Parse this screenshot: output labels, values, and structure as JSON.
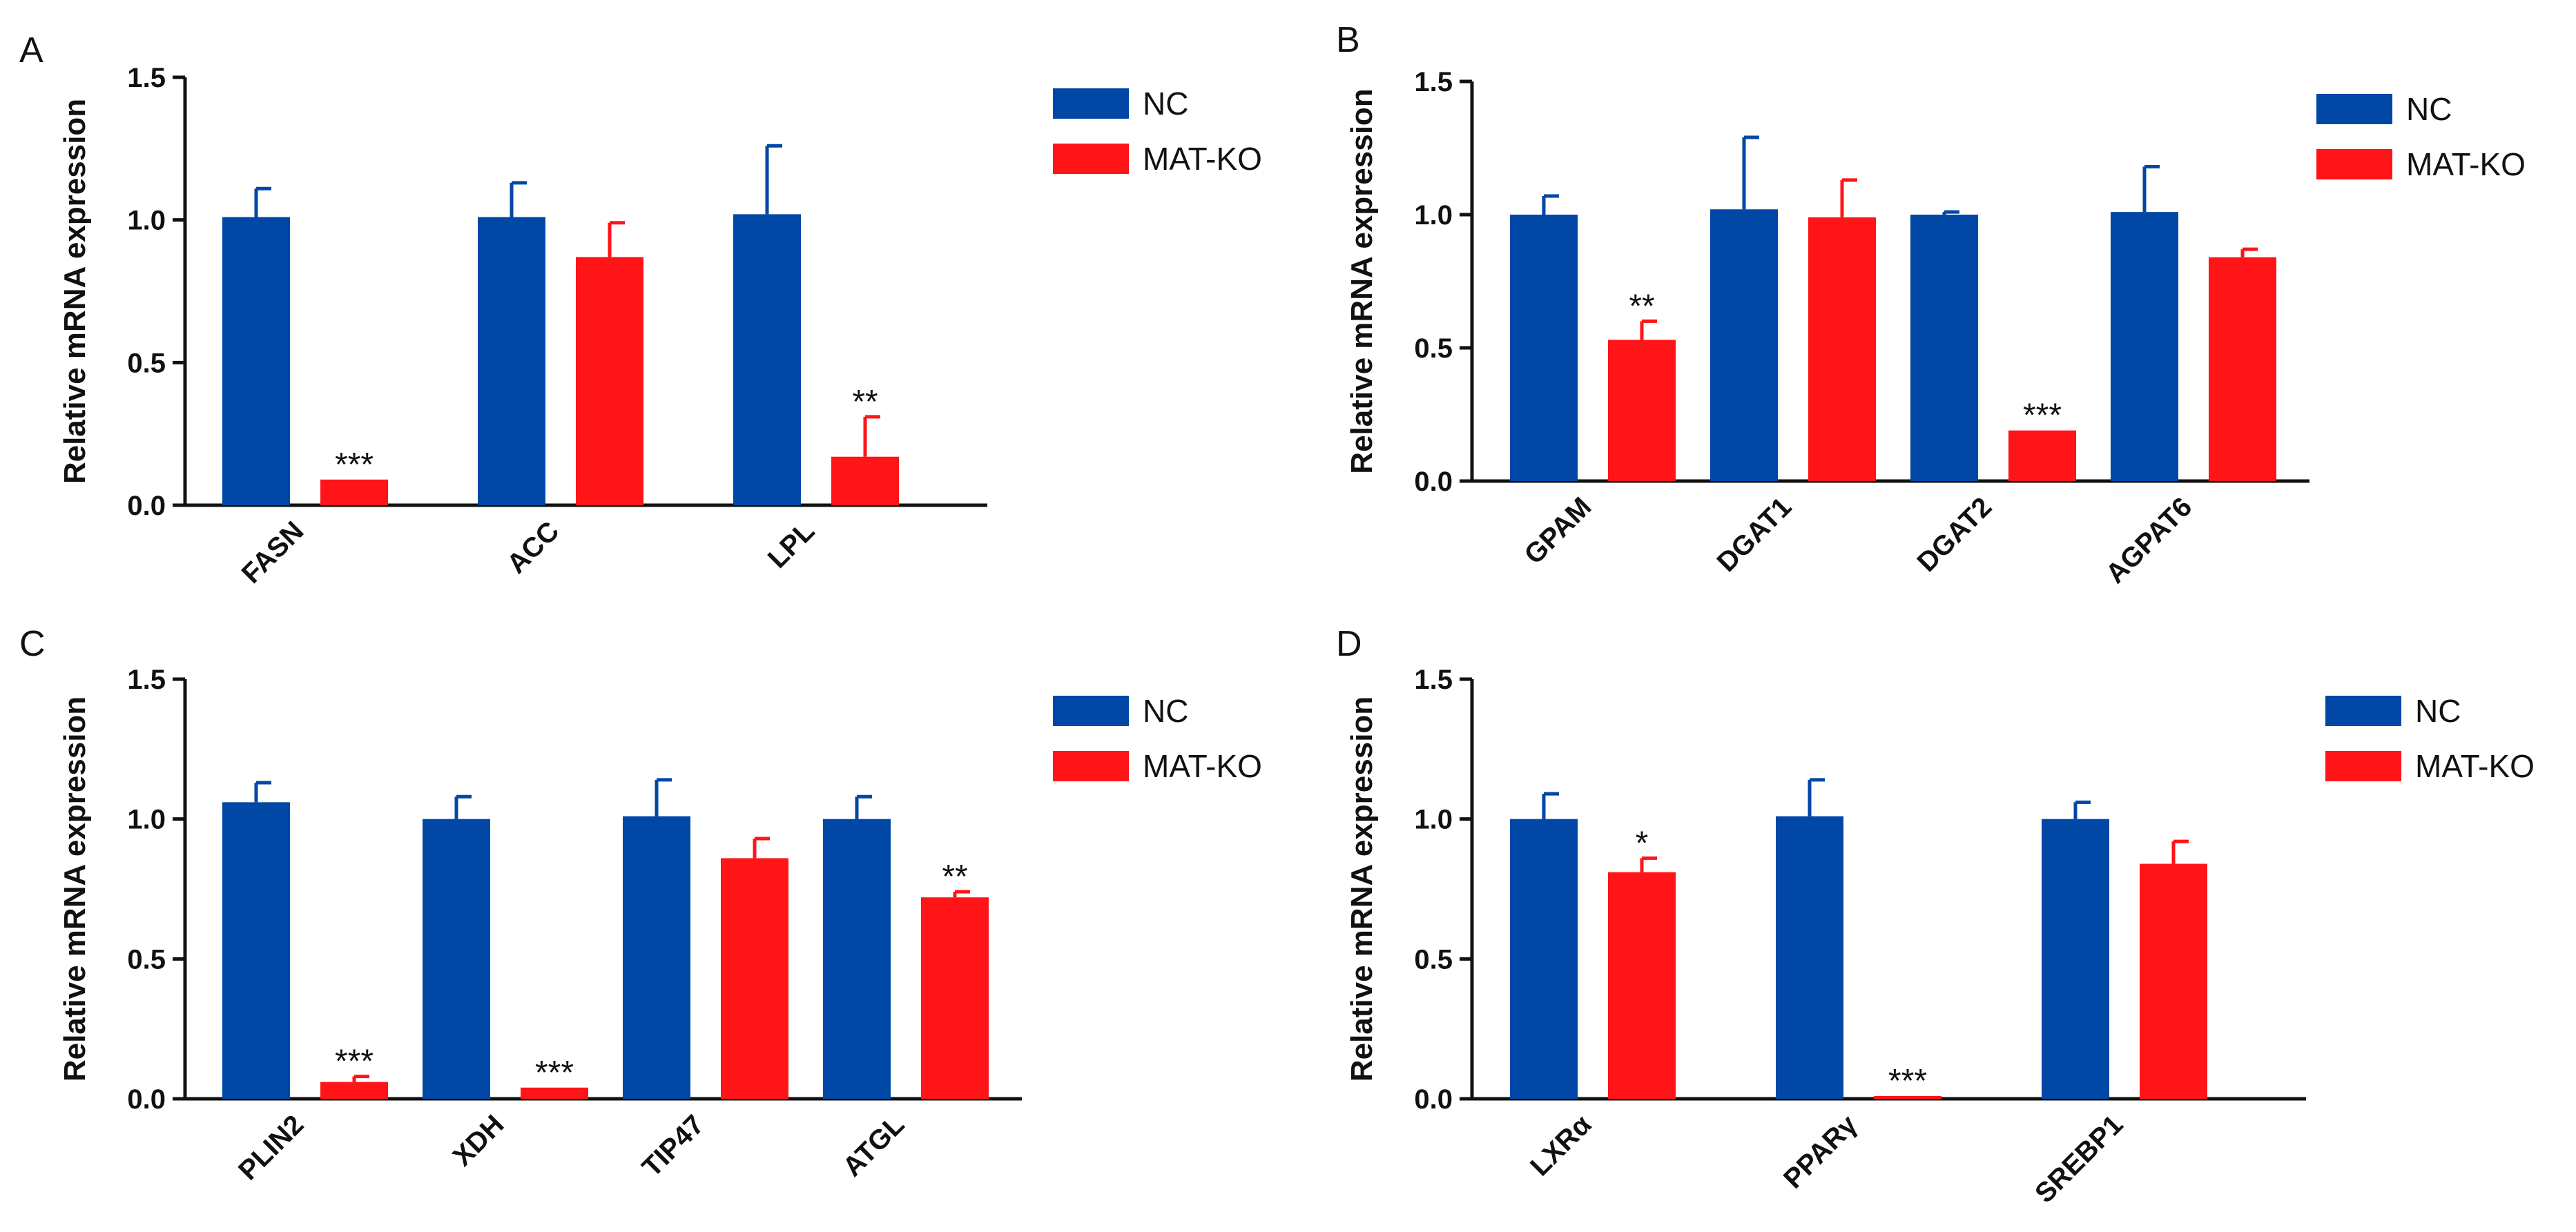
{
  "colors": {
    "NC": "#0047a6",
    "MAT-KO": "#ff1418"
  },
  "chart_data": [
    {
      "panel": "A",
      "type": "bar",
      "ylabel": "Relative mRNA expression",
      "ylim": [
        0,
        1.5
      ],
      "yticks": [
        "0.0",
        "0.5",
        "1.0",
        "1.5"
      ],
      "categories": [
        "FASN",
        "ACC",
        "LPL"
      ],
      "series": [
        {
          "name": "NC",
          "values": [
            1.01,
            1.01,
            1.02
          ],
          "errors": [
            0.1,
            0.12,
            0.24
          ]
        },
        {
          "name": "MAT-KO",
          "values": [
            0.09,
            0.87,
            0.17
          ],
          "errors": [
            0.0,
            0.12,
            0.14
          ]
        }
      ],
      "significance": [
        "***",
        "",
        "**"
      ],
      "legend": "right"
    },
    {
      "panel": "B",
      "type": "bar",
      "ylabel": "Relative mRNA expression",
      "ylim": [
        0,
        1.5
      ],
      "yticks": [
        "0.0",
        "0.5",
        "1.0",
        "1.5"
      ],
      "categories": [
        "GPAM",
        "DGAT1",
        "DGAT2",
        "AGPAT6"
      ],
      "series": [
        {
          "name": "NC",
          "values": [
            1.0,
            1.02,
            1.0,
            1.01
          ],
          "errors": [
            0.07,
            0.27,
            0.01,
            0.17
          ]
        },
        {
          "name": "MAT-KO",
          "values": [
            0.53,
            0.99,
            0.19,
            0.84
          ],
          "errors": [
            0.07,
            0.14,
            0.0,
            0.03
          ]
        }
      ],
      "significance": [
        "**",
        "",
        "***",
        ""
      ],
      "legend": "right"
    },
    {
      "panel": "C",
      "type": "bar",
      "ylabel": "Relative mRNA expression",
      "ylim": [
        0,
        1.5
      ],
      "yticks": [
        "0.0",
        "0.5",
        "1.0",
        "1.5"
      ],
      "categories": [
        "PLIN2",
        "XDH",
        "TIP47",
        "ATGL"
      ],
      "series": [
        {
          "name": "NC",
          "values": [
            1.06,
            1.0,
            1.01,
            1.0
          ],
          "errors": [
            0.07,
            0.08,
            0.13,
            0.08
          ]
        },
        {
          "name": "MAT-KO",
          "values": [
            0.06,
            0.04,
            0.86,
            0.72
          ],
          "errors": [
            0.02,
            0.0,
            0.07,
            0.02
          ]
        }
      ],
      "significance": [
        "***",
        "***",
        "",
        "**"
      ],
      "legend": "right"
    },
    {
      "panel": "D",
      "type": "bar",
      "ylabel": "Relative mRNA expression",
      "ylim": [
        0,
        1.5
      ],
      "yticks": [
        "0.0",
        "0.5",
        "1.0",
        "1.5"
      ],
      "categories": [
        "LXRα",
        "PPARγ",
        "SREBP1"
      ],
      "series": [
        {
          "name": "NC",
          "values": [
            1.0,
            1.01,
            1.0
          ],
          "errors": [
            0.09,
            0.13,
            0.06
          ]
        },
        {
          "name": "MAT-KO",
          "values": [
            0.81,
            0.01,
            0.84
          ],
          "errors": [
            0.05,
            0.0,
            0.08
          ]
        }
      ],
      "significance": [
        "*",
        "***",
        ""
      ],
      "legend": "right"
    }
  ]
}
